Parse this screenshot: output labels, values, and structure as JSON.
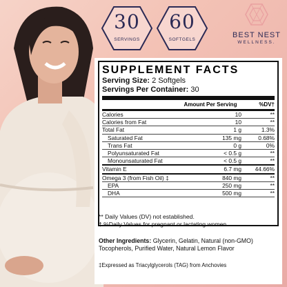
{
  "badges": [
    {
      "number": "30",
      "label": "SERVINGS"
    },
    {
      "number": "60",
      "label": "SOFTGELS"
    }
  ],
  "brand": {
    "name": "BEST NEST",
    "tagline": "WELLNESS."
  },
  "colors": {
    "navy": "#2b2a55",
    "accent": "#e9a0a0"
  },
  "facts": {
    "title": "SUPPLEMENT FACTS",
    "serving_size_label": "Serving Size:",
    "serving_size_value": "2 Softgels",
    "servings_label": "Servings Per Container:",
    "servings_value": "30",
    "col_amount": "Amount Per Serving",
    "col_dv": "%DV†",
    "rows": [
      {
        "name": "Calories",
        "amount": "10",
        "dv": "**",
        "indent": false
      },
      {
        "name": "Calories from Fat",
        "amount": "10",
        "dv": "**",
        "indent": false
      },
      {
        "name": "Total Fat",
        "amount": "1 g",
        "dv": "1.3%",
        "indent": false
      },
      {
        "name": "Saturated Fat",
        "amount": "135 mg",
        "dv": "0.68%",
        "indent": true
      },
      {
        "name": "Trans Fat",
        "amount": "0 g",
        "dv": "0%",
        "indent": true
      },
      {
        "name": "Polyunsaturated Fat",
        "amount": "< 0.5 g",
        "dv": "**",
        "indent": true
      },
      {
        "name": "Monounsaturated Fat",
        "amount": "< 0.5 g",
        "dv": "**",
        "indent": true
      },
      {
        "name": "Vitamin E",
        "amount": "6.7 mg",
        "dv": "44.66%",
        "indent": false
      },
      {
        "name": "Omega 3 (from Fish Oil) ‡",
        "amount": "840 mg",
        "dv": "**",
        "indent": false
      },
      {
        "name": "EPA",
        "amount": "250 mg",
        "dv": "**",
        "indent": true
      },
      {
        "name": "DHA",
        "amount": "500 mg",
        "dv": "**",
        "indent": true
      }
    ]
  },
  "notes": [
    "** Daily Values (DV) not established.",
    "† %Daily Values for pregnant or lactating women"
  ],
  "ingredients": {
    "label": "Other Ingredients:",
    "text": "Glycerin, Gelatin, Natural (non-GMO) Tocopherols, Purified Water, Natural Lemon Flavor"
  },
  "footnote": "‡Expressed as Triacylglycerols (TAG) from Anchovies"
}
